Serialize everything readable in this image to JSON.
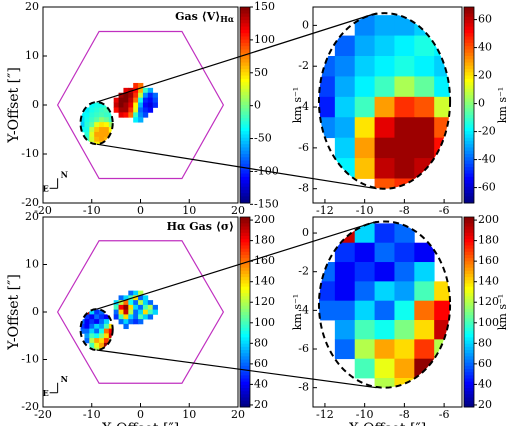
{
  "chart_data": [
    {
      "type": "heatmap",
      "title": "Gas ⟨V⟩",
      "title_sub": "Hα",
      "ylabel": "Y-Offset [″]",
      "xlim": [
        -20,
        20
      ],
      "ylim": [
        -20,
        20
      ],
      "xticks": [
        -20,
        -10,
        0,
        10,
        20
      ],
      "yticks": [
        -20,
        -10,
        0,
        10,
        20
      ],
      "colormap": "jet",
      "compass": {
        "n": "N",
        "e": "E"
      },
      "colorbar": {
        "label": "km s⁻¹",
        "lim": [
          -148,
          150
        ],
        "ticks": [
          150,
          100,
          50,
          0,
          -50,
          -100,
          -150
        ]
      },
      "maps": [
        {
          "x": [
            -5,
            -4,
            -3,
            -2,
            -1,
            0,
            1,
            2,
            3
          ],
          "y": [
            4,
            3,
            2,
            1,
            0,
            -1,
            -2,
            -3
          ],
          "values": [
            [
              null,
              null,
              null,
              null,
              100,
              80,
              null,
              null,
              null
            ],
            [
              null,
              null,
              120,
              130,
              110,
              60,
              -20,
              -60,
              null
            ],
            [
              null,
              140,
              150,
              140,
              100,
              20,
              -70,
              -100,
              -80
            ],
            [
              120,
              150,
              150,
              130,
              80,
              -30,
              -100,
              -110,
              -90
            ],
            [
              130,
              150,
              140,
              120,
              40,
              -60,
              -110,
              -120,
              -100
            ],
            [
              110,
              140,
              140,
              100,
              30,
              -80,
              -100,
              -110,
              null
            ],
            [
              null,
              120,
              110,
              80,
              -20,
              -70,
              -90,
              null,
              null
            ],
            [
              null,
              null,
              null,
              null,
              -40,
              -60,
              null,
              null,
              null
            ]
          ]
        }
      ]
    },
    {
      "type": "heatmap",
      "xlim": [
        -12.6,
        -5.1
      ],
      "ylim": [
        -8.7,
        0.9
      ],
      "xticks": [
        -12,
        -10,
        -8,
        -6
      ],
      "yticks": [
        0,
        -2,
        -4,
        -6,
        -8
      ],
      "colormap": "jet",
      "colorbar": {
        "label": "km s⁻¹",
        "lim": [
          -71,
          69
        ],
        "ticks": [
          60,
          40,
          20,
          0,
          -20,
          -40,
          -60
        ]
      },
      "maps": [
        {
          "x": [
            -12,
            -11,
            -10,
            -9,
            -8,
            -7,
            -6
          ],
          "y": [
            0,
            -1,
            -2,
            -3,
            -4,
            -5,
            -6,
            -7,
            -8
          ],
          "values": [
            [
              null,
              null,
              -35,
              -30,
              -30,
              -25,
              null
            ],
            [
              null,
              -40,
              -30,
              -25,
              -20,
              -15,
              -20
            ],
            [
              -40,
              -35,
              -25,
              -20,
              -15,
              -20,
              -25
            ],
            [
              -45,
              -30,
              -20,
              -10,
              5,
              -5,
              -20
            ],
            [
              -50,
              -25,
              -10,
              30,
              45,
              40,
              10
            ],
            [
              -35,
              -30,
              20,
              55,
              65,
              65,
              40
            ],
            [
              null,
              -25,
              30,
              65,
              65,
              65,
              50
            ],
            [
              null,
              -20,
              25,
              60,
              65,
              60,
              null
            ],
            [
              null,
              null,
              null,
              40,
              45,
              null,
              null
            ]
          ]
        }
      ]
    },
    {
      "type": "heatmap",
      "title": "Hα Gas ⟨σ⟩",
      "xlabel": "X-Offset [″]",
      "ylabel": "Y-Offset [″]",
      "xlim": [
        -20,
        20
      ],
      "ylim": [
        -20,
        20
      ],
      "xticks": [
        -20,
        -10,
        0,
        10,
        20
      ],
      "yticks": [
        -20,
        -10,
        0,
        10,
        20
      ],
      "colormap": "jet",
      "compass": {
        "n": "N",
        "e": "E"
      },
      "colorbar": {
        "label": "km s⁻¹",
        "lim": [
          18,
          203
        ],
        "ticks": [
          200,
          180,
          160,
          140,
          120,
          100,
          80,
          60,
          40,
          20
        ]
      },
      "maps": [
        {
          "x": [
            -5,
            -4,
            -3,
            -2,
            -1,
            0,
            1,
            2,
            3
          ],
          "y": [
            4,
            3,
            2,
            1,
            0,
            -1,
            -2,
            -3
          ],
          "values": [
            [
              null,
              null,
              null,
              60,
              80,
              120,
              null,
              null,
              null
            ],
            [
              null,
              60,
              80,
              100,
              140,
              60,
              80,
              null,
              null
            ],
            [
              80,
              120,
              160,
              90,
              60,
              120,
              80,
              60,
              null
            ],
            [
              100,
              180,
              200,
              140,
              80,
              60,
              100,
              120,
              60
            ],
            [
              60,
              140,
              190,
              120,
              60,
              80,
              140,
              100,
              80
            ],
            [
              50,
              100,
              140,
              80,
              60,
              100,
              80,
              60,
              null
            ],
            [
              null,
              60,
              80,
              60,
              50,
              60,
              null,
              null,
              null
            ],
            [
              null,
              null,
              60,
              null,
              null,
              null,
              null,
              null,
              null
            ]
          ]
        }
      ]
    },
    {
      "type": "heatmap",
      "xlabel": "X-Offset [″]",
      "xlim": [
        -12.6,
        -5.1
      ],
      "ylim": [
        -9,
        0.83
      ],
      "xticks": [
        -12,
        -10,
        -8,
        -6
      ],
      "yticks": [
        0,
        -2,
        -4,
        -6,
        -8
      ],
      "colormap": "jet",
      "colorbar": {
        "label": "km s⁻¹",
        "lim": [
          18,
          203
        ],
        "ticks": [
          200,
          180,
          160,
          140,
          120,
          100,
          80,
          60,
          40,
          20
        ]
      },
      "maps": [
        {
          "x": [
            -12,
            -11,
            -10,
            -9,
            -8,
            -7,
            -6
          ],
          "y": [
            0,
            -1,
            -2,
            -3,
            -4,
            -5,
            -6,
            -7,
            -8
          ],
          "values": [
            [
              null,
              190,
              80,
              50,
              60,
              null,
              null
            ],
            [
              null,
              50,
              40,
              60,
              50,
              40,
              null
            ],
            [
              60,
              40,
              50,
              40,
              60,
              80,
              null
            ],
            [
              50,
              40,
              60,
              80,
              70,
              100,
              140
            ],
            [
              60,
              60,
              80,
              60,
              90,
              160,
              180
            ],
            [
              null,
              70,
              100,
              90,
              110,
              140,
              190
            ],
            [
              null,
              60,
              120,
              150,
              140,
              170,
              120
            ],
            [
              null,
              null,
              100,
              130,
              150,
              200,
              null
            ],
            [
              null,
              null,
              null,
              120,
              140,
              null,
              null
            ]
          ]
        }
      ]
    }
  ]
}
